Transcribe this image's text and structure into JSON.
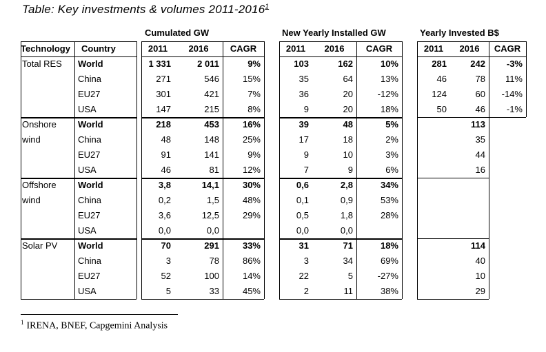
{
  "title": "Table: Key investments & volumes 2011-2016",
  "title_footnote_mark": "1",
  "group_headers": {
    "cumulated": "Cumulated GW",
    "yearly_installed": "New Yearly Installed GW",
    "yearly_invested": "Yearly Invested B$"
  },
  "column_headers": {
    "technology": "Technology",
    "country": "Country",
    "y2011": "2011",
    "y2016": "2016",
    "cagr": "CAGR"
  },
  "rows": [
    {
      "tech": "Total RES",
      "country": "World",
      "bold": true,
      "cum": [
        "1 331",
        "2 011",
        "9%"
      ],
      "inst": [
        "103",
        "162",
        "10%"
      ],
      "inv": [
        "281",
        "242",
        "-3%"
      ]
    },
    {
      "tech": "",
      "country": "China",
      "bold": false,
      "cum": [
        "271",
        "546",
        "15%"
      ],
      "inst": [
        "35",
        "64",
        "13%"
      ],
      "inv": [
        "46",
        "78",
        "11%"
      ]
    },
    {
      "tech": "",
      "country": "EU27",
      "bold": false,
      "cum": [
        "301",
        "421",
        "7%"
      ],
      "inst": [
        "36",
        "20",
        "-12%"
      ],
      "inv": [
        "124",
        "60",
        "-14%"
      ]
    },
    {
      "tech": "",
      "country": "USA",
      "bold": false,
      "cum": [
        "147",
        "215",
        "8%"
      ],
      "inst": [
        "9",
        "20",
        "18%"
      ],
      "inv": [
        "50",
        "46",
        "-1%"
      ]
    },
    {
      "tech": "Onshore",
      "country": "World",
      "bold": true,
      "cum": [
        "218",
        "453",
        "16%"
      ],
      "inst": [
        "39",
        "48",
        "5%"
      ],
      "inv": [
        "",
        "113",
        ""
      ]
    },
    {
      "tech": "wind",
      "country": "China",
      "bold": false,
      "cum": [
        "48",
        "148",
        "25%"
      ],
      "inst": [
        "17",
        "18",
        "2%"
      ],
      "inv": [
        "",
        "35",
        ""
      ]
    },
    {
      "tech": "",
      "country": "EU27",
      "bold": false,
      "cum": [
        "91",
        "141",
        "9%"
      ],
      "inst": [
        "9",
        "10",
        "3%"
      ],
      "inv": [
        "",
        "44",
        ""
      ]
    },
    {
      "tech": "",
      "country": "USA",
      "bold": false,
      "cum": [
        "46",
        "81",
        "12%"
      ],
      "inst": [
        "7",
        "9",
        "6%"
      ],
      "inv": [
        "",
        "16",
        ""
      ]
    },
    {
      "tech": "Offshore",
      "country": "World",
      "bold": true,
      "cum": [
        "3,8",
        "14,1",
        "30%"
      ],
      "inst": [
        "0,6",
        "2,8",
        "34%"
      ],
      "inv": [
        "",
        "",
        ""
      ]
    },
    {
      "tech": "wind",
      "country": "China",
      "bold": false,
      "cum": [
        "0,2",
        "1,5",
        "48%"
      ],
      "inst": [
        "0,1",
        "0,9",
        "53%"
      ],
      "inv": [
        "",
        "",
        ""
      ]
    },
    {
      "tech": "",
      "country": "EU27",
      "bold": false,
      "cum": [
        "3,6",
        "12,5",
        "29%"
      ],
      "inst": [
        "0,5",
        "1,8",
        "28%"
      ],
      "inv": [
        "",
        "",
        ""
      ]
    },
    {
      "tech": "",
      "country": "USA",
      "bold": false,
      "cum": [
        "0,0",
        "0,0",
        ""
      ],
      "inst": [
        "0,0",
        "0,0",
        ""
      ],
      "inv": [
        "",
        "",
        ""
      ]
    },
    {
      "tech": "Solar PV",
      "country": "World",
      "bold": true,
      "cum": [
        "70",
        "291",
        "33%"
      ],
      "inst": [
        "31",
        "71",
        "18%"
      ],
      "inv": [
        "",
        "114",
        ""
      ]
    },
    {
      "tech": "",
      "country": "China",
      "bold": false,
      "cum": [
        "3",
        "78",
        "86%"
      ],
      "inst": [
        "3",
        "34",
        "69%"
      ],
      "inv": [
        "",
        "40",
        ""
      ]
    },
    {
      "tech": "",
      "country": "EU27",
      "bold": false,
      "cum": [
        "52",
        "100",
        "14%"
      ],
      "inst": [
        "22",
        "5",
        "-27%"
      ],
      "inv": [
        "",
        "10",
        ""
      ]
    },
    {
      "tech": "",
      "country": "USA",
      "bold": false,
      "cum": [
        "5",
        "33",
        "45%"
      ],
      "inst": [
        "2",
        "11",
        "38%"
      ],
      "inv": [
        "",
        "29",
        ""
      ]
    }
  ],
  "footnote": {
    "mark": "1",
    "text": "IRENA, BNEF, Capgemini Analysis"
  }
}
